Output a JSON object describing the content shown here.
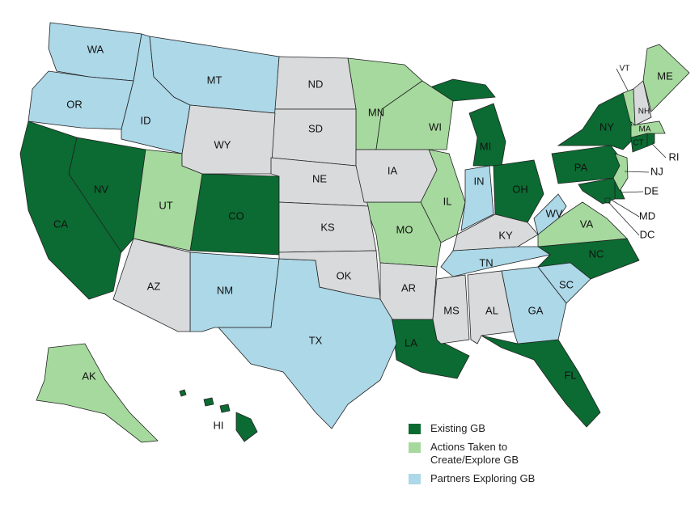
{
  "groups": [
    {
      "label": "Existing GB",
      "color": "#0b6b32",
      "states": [
        "CA",
        "NV",
        "CO",
        "MI",
        "OH",
        "PA",
        "NY",
        "NC",
        "LA",
        "FL",
        "CT",
        "RI",
        "DE",
        "MD",
        "DC",
        "HI"
      ]
    },
    {
      "label": "Actions Taken to Create/Explore GB",
      "color": "#a6d99e",
      "states": [
        "UT",
        "MN",
        "WI",
        "IL",
        "MO",
        "VA",
        "NJ",
        "VT",
        "ME",
        "MA",
        "AK"
      ]
    },
    {
      "label": "Partners Exploring GB",
      "color": "#acd8e8",
      "states": [
        "WA",
        "OR",
        "ID",
        "MT",
        "NM",
        "TX",
        "IN",
        "WV",
        "TN",
        "GA",
        "SC"
      ]
    }
  ],
  "other_states": {
    "color": "#d9dadb",
    "states": [
      "ND",
      "SD",
      "WY",
      "NE",
      "KS",
      "IA",
      "OK",
      "AR",
      "MS",
      "AL",
      "AZ",
      "KY",
      "NH"
    ]
  }
}
